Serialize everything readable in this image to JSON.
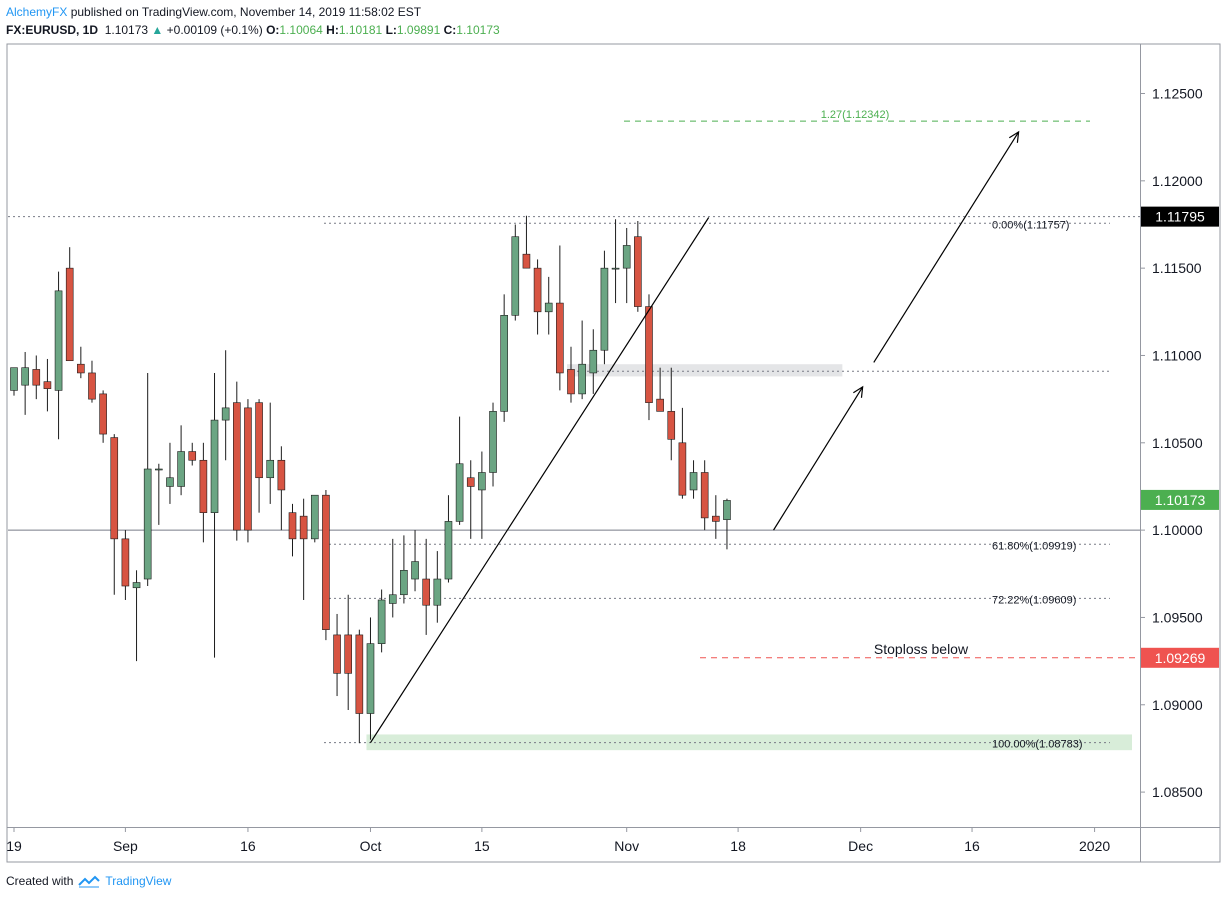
{
  "header": {
    "author": "AlchemyFX",
    "published_text": " published on TradingView.com, November 14, 2019 11:58:02 EST",
    "symbol": "FX:EURUSD, 1D",
    "last": "1.10173",
    "change": "+0.00109 (+0.1%)",
    "o_label": "O:",
    "o_value": "1.10064",
    "h_label": "H:",
    "h_value": "1.10181",
    "l_label": "L:",
    "l_value": "1.09891",
    "c_label": "C:",
    "c_value": "1.10173"
  },
  "footer": {
    "created_with": "Created with",
    "brand": "TradingView"
  },
  "chart_data": {
    "type": "candlestick",
    "symbol": "FX:EURUSD",
    "interval": "1D",
    "ylim": [
      1.0827,
      1.1283
    ],
    "price_scale_ticks": [
      "1.12500",
      "1.12000",
      "1.11500",
      "1.11000",
      "1.10500",
      "1.10000",
      "1.09500",
      "1.09000",
      "1.08500"
    ],
    "time_axis_labels": [
      {
        "label": "19",
        "bar": 0
      },
      {
        "label": "Sep",
        "bar": 10
      },
      {
        "label": "16",
        "bar": 21
      },
      {
        "label": "Oct",
        "bar": 32
      },
      {
        "label": "15",
        "bar": 42
      },
      {
        "label": "Nov",
        "bar": 55
      },
      {
        "label": "18",
        "bar": 65
      },
      {
        "label": "Dec",
        "bar": 76
      },
      {
        "label": "16",
        "bar": 86
      },
      {
        "label": "2020",
        "bar": 97
      }
    ],
    "colors": {
      "up": "#6ba583",
      "down": "#d75442",
      "wick": "#1c1c1c",
      "fib_target": "#4caf50",
      "stoploss": "#ef5350",
      "last_price_badge": "#4caf50"
    },
    "candles": [
      {
        "o": 1.108,
        "h": 1.1092,
        "l": 1.1077,
        "c": 1.1093
      },
      {
        "o": 1.1083,
        "h": 1.1102,
        "l": 1.1066,
        "c": 1.1093
      },
      {
        "o": 1.1092,
        "h": 1.11,
        "l": 1.1075,
        "c": 1.1083
      },
      {
        "o": 1.1085,
        "h": 1.1098,
        "l": 1.1068,
        "c": 1.1081
      },
      {
        "o": 1.108,
        "h": 1.1148,
        "l": 1.1052,
        "c": 1.1137
      },
      {
        "o": 1.115,
        "h": 1.1162,
        "l": 1.1097,
        "c": 1.1097
      },
      {
        "o": 1.1095,
        "h": 1.1105,
        "l": 1.1087,
        "c": 1.109
      },
      {
        "o": 1.109,
        "h": 1.1097,
        "l": 1.1073,
        "c": 1.1075
      },
      {
        "o": 1.1078,
        "h": 1.108,
        "l": 1.105,
        "c": 1.1055
      },
      {
        "o": 1.1053,
        "h": 1.1055,
        "l": 1.0963,
        "c": 1.0995
      },
      {
        "o": 1.0995,
        "h": 1.1,
        "l": 1.096,
        "c": 1.0968
      },
      {
        "o": 1.0967,
        "h": 1.0977,
        "l": 1.0925,
        "c": 1.097
      },
      {
        "o": 1.0972,
        "h": 1.109,
        "l": 1.0968,
        "c": 1.1035
      },
      {
        "o": 1.1035,
        "h": 1.1038,
        "l": 1.1003,
        "c": 1.1035
      },
      {
        "o": 1.1025,
        "h": 1.105,
        "l": 1.1015,
        "c": 1.103
      },
      {
        "o": 1.1025,
        "h": 1.106,
        "l": 1.102,
        "c": 1.1045
      },
      {
        "o": 1.1045,
        "h": 1.105,
        "l": 1.1037,
        "c": 1.104
      },
      {
        "o": 1.104,
        "h": 1.105,
        "l": 1.0993,
        "c": 1.101
      },
      {
        "o": 1.101,
        "h": 1.109,
        "l": 1.0927,
        "c": 1.1063
      },
      {
        "o": 1.1063,
        "h": 1.1103,
        "l": 1.104,
        "c": 1.107
      },
      {
        "o": 1.1073,
        "h": 1.1085,
        "l": 1.0994,
        "c": 1.1
      },
      {
        "o": 1.107,
        "h": 1.1075,
        "l": 1.0993,
        "c": 1.1
      },
      {
        "o": 1.1073,
        "h": 1.1075,
        "l": 1.101,
        "c": 1.103
      },
      {
        "o": 1.103,
        "h": 1.1073,
        "l": 1.1015,
        "c": 1.104
      },
      {
        "o": 1.104,
        "h": 1.1048,
        "l": 1.1,
        "c": 1.1023
      },
      {
        "o": 1.101,
        "h": 1.1015,
        "l": 1.0985,
        "c": 1.0995
      },
      {
        "o": 1.1008,
        "h": 1.1018,
        "l": 1.096,
        "c": 1.0995
      },
      {
        "o": 1.0995,
        "h": 1.102,
        "l": 1.0993,
        "c": 1.102
      },
      {
        "o": 1.102,
        "h": 1.1023,
        "l": 1.0937,
        "c": 1.0943
      },
      {
        "o": 1.094,
        "h": 1.0952,
        "l": 1.0905,
        "c": 1.0918
      },
      {
        "o": 1.094,
        "h": 1.0963,
        "l": 1.0897,
        "c": 1.0918
      },
      {
        "o": 1.094,
        "h": 1.0943,
        "l": 1.0878,
        "c": 1.0895
      },
      {
        "o": 1.0895,
        "h": 1.095,
        "l": 1.088,
        "c": 1.0935
      },
      {
        "o": 1.0935,
        "h": 1.0966,
        "l": 1.093,
        "c": 1.096
      },
      {
        "o": 1.0958,
        "h": 1.0995,
        "l": 1.095,
        "c": 1.0963
      },
      {
        "o": 1.0963,
        "h": 1.0997,
        "l": 1.0958,
        "c": 1.0977
      },
      {
        "o": 1.0972,
        "h": 1.1,
        "l": 1.0965,
        "c": 1.0982
      },
      {
        "o": 1.0972,
        "h": 1.0995,
        "l": 1.094,
        "c": 1.0957
      },
      {
        "o": 1.0957,
        "h": 1.0988,
        "l": 1.0947,
        "c": 1.0972
      },
      {
        "o": 1.0972,
        "h": 1.102,
        "l": 1.097,
        "c": 1.1005
      },
      {
        "o": 1.1005,
        "h": 1.1065,
        "l": 1.1003,
        "c": 1.1038
      },
      {
        "o": 1.103,
        "h": 1.104,
        "l": 1.0995,
        "c": 1.1025
      },
      {
        "o": 1.1023,
        "h": 1.1045,
        "l": 1.0995,
        "c": 1.1033
      },
      {
        "o": 1.1033,
        "h": 1.1073,
        "l": 1.1025,
        "c": 1.1068
      },
      {
        "o": 1.1068,
        "h": 1.1135,
        "l": 1.1062,
        "c": 1.1123
      },
      {
        "o": 1.1123,
        "h": 1.1175,
        "l": 1.112,
        "c": 1.1168
      },
      {
        "o": 1.1158,
        "h": 1.118,
        "l": 1.115,
        "c": 1.115
      },
      {
        "o": 1.115,
        "h": 1.1155,
        "l": 1.1112,
        "c": 1.1125
      },
      {
        "o": 1.1125,
        "h": 1.1145,
        "l": 1.1112,
        "c": 1.113
      },
      {
        "o": 1.113,
        "h": 1.1163,
        "l": 1.108,
        "c": 1.109
      },
      {
        "o": 1.1092,
        "h": 1.1105,
        "l": 1.1073,
        "c": 1.1078
      },
      {
        "o": 1.1078,
        "h": 1.112,
        "l": 1.1075,
        "c": 1.1095
      },
      {
        "o": 1.109,
        "h": 1.1115,
        "l": 1.1078,
        "c": 1.1103
      },
      {
        "o": 1.1103,
        "h": 1.116,
        "l": 1.1095,
        "c": 1.115
      },
      {
        "o": 1.115,
        "h": 1.1178,
        "l": 1.113,
        "c": 1.115
      },
      {
        "o": 1.115,
        "h": 1.1173,
        "l": 1.113,
        "c": 1.1163
      },
      {
        "o": 1.1168,
        "h": 1.1177,
        "l": 1.1125,
        "c": 1.1128
      },
      {
        "o": 1.1128,
        "h": 1.1135,
        "l": 1.1063,
        "c": 1.1073
      },
      {
        "o": 1.1075,
        "h": 1.1093,
        "l": 1.1068,
        "c": 1.1068
      },
      {
        "o": 1.1068,
        "h": 1.1093,
        "l": 1.104,
        "c": 1.1052
      },
      {
        "o": 1.105,
        "h": 1.107,
        "l": 1.1018,
        "c": 1.102
      },
      {
        "o": 1.1023,
        "h": 1.104,
        "l": 1.1018,
        "c": 1.1033
      },
      {
        "o": 1.1033,
        "h": 1.104,
        "l": 1.1,
        "c": 1.1007
      },
      {
        "o": 1.1008,
        "h": 1.102,
        "l": 1.0995,
        "c": 1.1005
      },
      {
        "o": 1.1006,
        "h": 1.1018,
        "l": 1.0989,
        "c": 1.1017
      }
    ],
    "last_close_line": {
      "price": 1.1
    },
    "high_line": {
      "price": 1.11795,
      "label": "1.11795"
    },
    "last_price_badge": {
      "price": 1.10173,
      "label": "1.10173"
    },
    "fib_levels": [
      {
        "label": "1.27(1.12342)",
        "price": 1.12342,
        "kind": "target"
      },
      {
        "label": "0.00%(1.11757)",
        "price": 1.11757,
        "kind": "level"
      },
      {
        "label": "61.80%(1.09919)",
        "price": 1.09919,
        "kind": "level"
      },
      {
        "label": "72.22%(1.09609)",
        "price": 1.09609,
        "kind": "level"
      },
      {
        "label": "100.00%(1.08783)",
        "price": 1.08783,
        "kind": "level"
      }
    ],
    "stoploss": {
      "price": 1.09269,
      "text": "Stoploss below",
      "label": "1.09269"
    },
    "resistance_line": {
      "price": 1.1091
    },
    "zones": [
      {
        "kind": "resistance",
        "from_bar": 50,
        "to_bar": 74,
        "low": 1.1088,
        "high": 1.1095
      },
      {
        "kind": "support",
        "from_bar": 32,
        "to_bar": 100,
        "low": 1.0874,
        "high": 1.0883
      }
    ],
    "trendline": {
      "from": {
        "bar": 32,
        "price": 1.08783
      },
      "to": {
        "bar": 62,
        "price": 1.1179
      }
    },
    "arrows": [
      {
        "from": {
          "bar": 68,
          "price": 1.1
        },
        "to": {
          "bar": 76,
          "price": 1.1082
        }
      },
      {
        "from": {
          "bar": 77,
          "price": 1.1096
        },
        "to": {
          "bar": 90,
          "price": 1.1228
        }
      }
    ]
  }
}
